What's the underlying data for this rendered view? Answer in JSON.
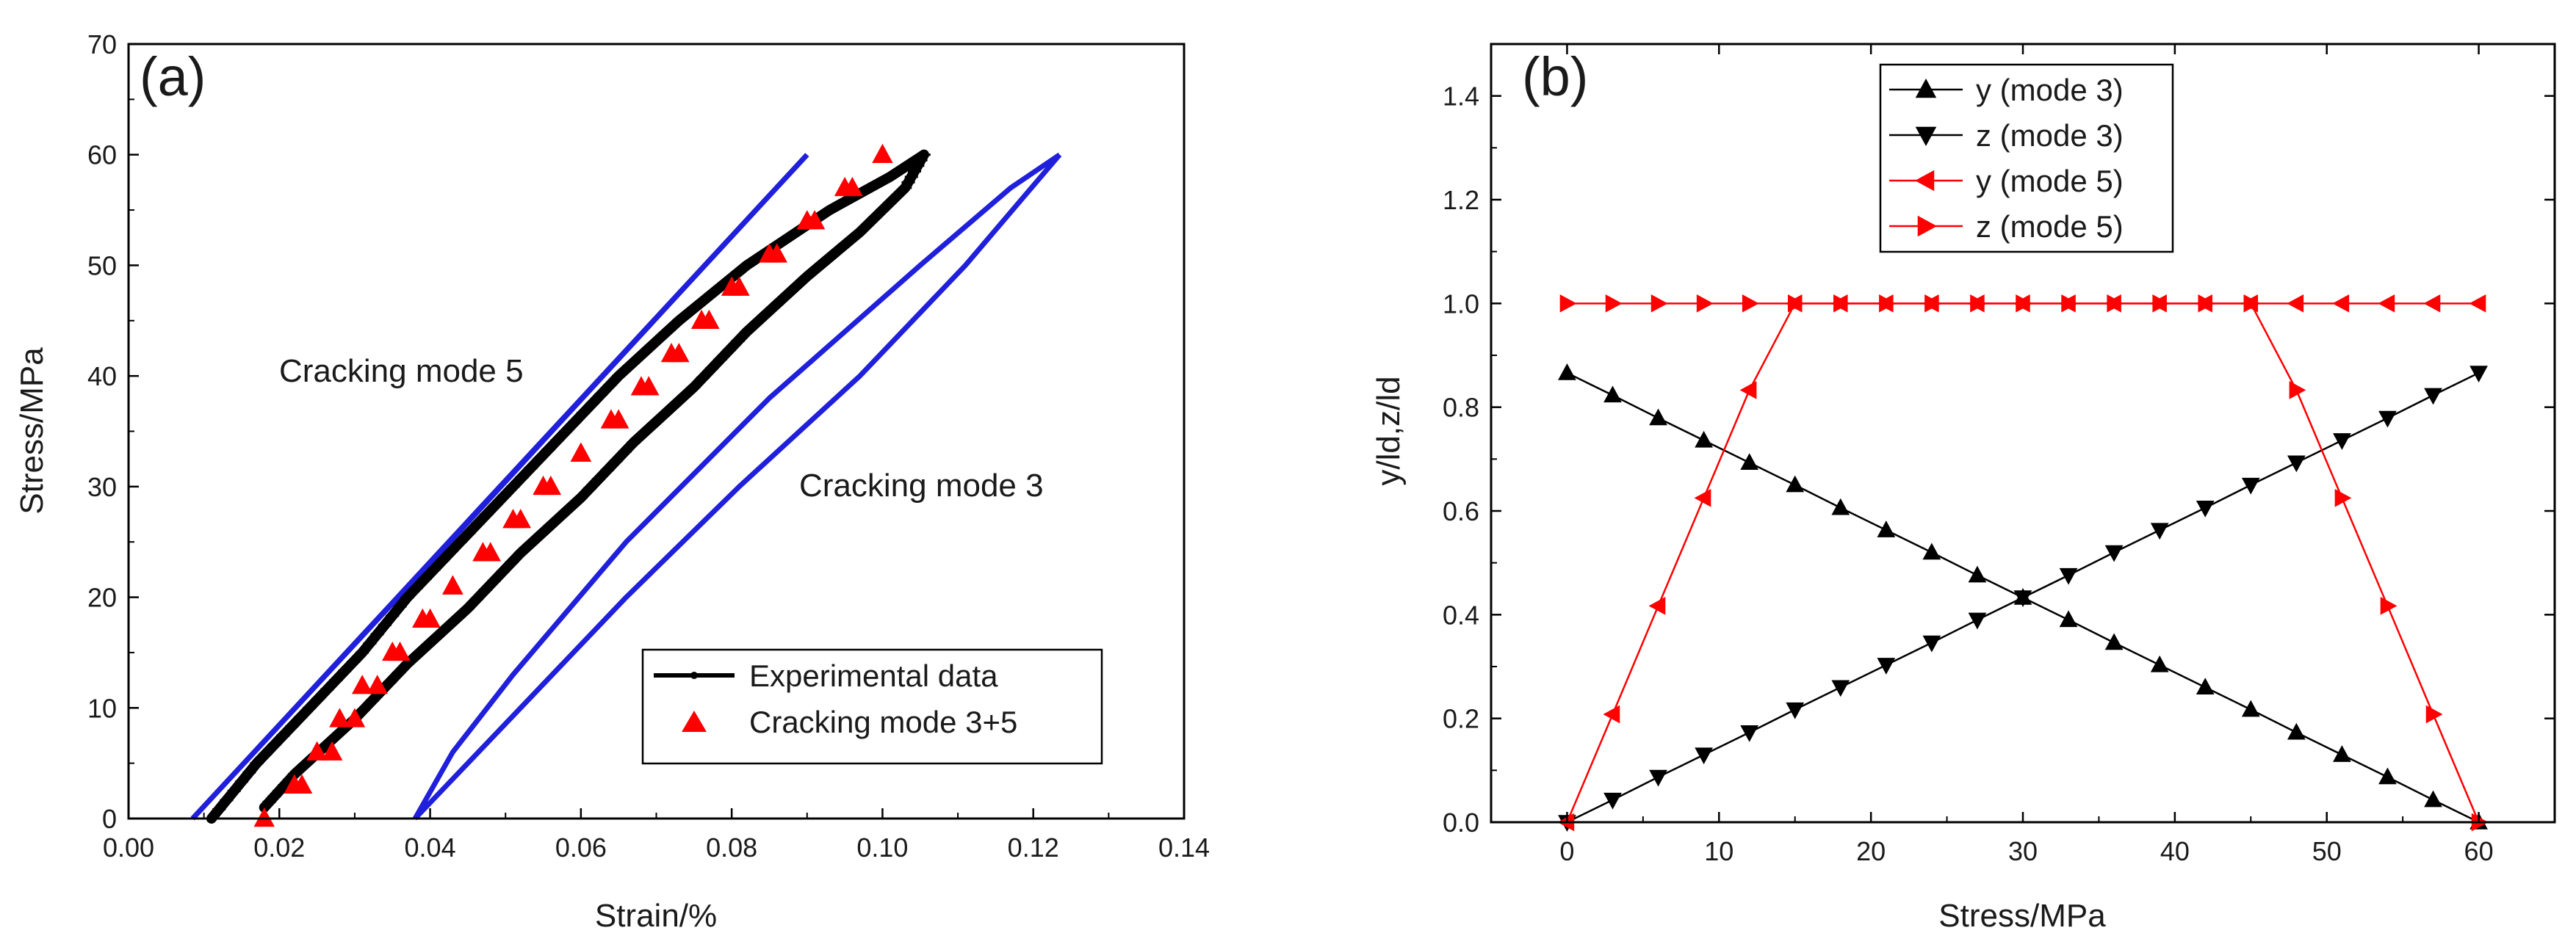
{
  "colors": {
    "black": "#000000",
    "blue": "#1f1fdc",
    "red": "#ff0000"
  },
  "chart_data": [
    {
      "type": "line",
      "panel_label": "(a)",
      "xlabel": "Strain/%",
      "ylabel": "Stress/MPa",
      "xlim": [
        0.0,
        0.14
      ],
      "ylim": [
        0,
        70
      ],
      "x_ticks": [
        "0.00",
        "0.02",
        "0.04",
        "0.06",
        "0.08",
        "0.10",
        "0.12",
        "0.14"
      ],
      "y_ticks": [
        "0",
        "10",
        "20",
        "30",
        "40",
        "50",
        "60",
        "70"
      ],
      "annotations": [
        {
          "text": "Cracking mode 5",
          "x": 0.043,
          "y": 40
        },
        {
          "text": "Cracking mode 3",
          "x": 0.091,
          "y": 29
        }
      ],
      "legend": {
        "position": "lower-right",
        "entries": [
          "Experimental data",
          "Cracking mode 3+5"
        ]
      },
      "series": [
        {
          "name": "Experimental data",
          "style": "black-thick-line-dots",
          "loading": [
            [
              0.011,
              0
            ],
            [
              0.017,
              5
            ],
            [
              0.024,
              10
            ],
            [
              0.031,
              15
            ],
            [
              0.037,
              20
            ],
            [
              0.044,
              25
            ],
            [
              0.051,
              30
            ],
            [
              0.058,
              35
            ],
            [
              0.065,
              40
            ],
            [
              0.073,
              45
            ],
            [
              0.082,
              50
            ],
            [
              0.093,
              55
            ],
            [
              0.101,
              58
            ],
            [
              0.1055,
              60
            ]
          ],
          "unloading": [
            [
              0.1055,
              60
            ],
            [
              0.103,
              57
            ],
            [
              0.097,
              53
            ],
            [
              0.09,
              49
            ],
            [
              0.082,
              44
            ],
            [
              0.075,
              39
            ],
            [
              0.067,
              34
            ],
            [
              0.06,
              29
            ],
            [
              0.052,
              24
            ],
            [
              0.045,
              19
            ],
            [
              0.037,
              14
            ],
            [
              0.03,
              9
            ],
            [
              0.022,
              4
            ],
            [
              0.018,
              1
            ]
          ]
        },
        {
          "name": "Cracking mode 5",
          "style": "blue-loop",
          "loading": [
            [
              0.0085,
              0
            ],
            [
              0.09,
              60
            ]
          ],
          "unloading": [
            [
              0.09,
              60
            ],
            [
              0.046,
              27.5
            ],
            [
              0.0085,
              0
            ]
          ]
        },
        {
          "name": "Cracking mode 3",
          "style": "blue-loop",
          "loading": [
            [
              0.038,
              0
            ],
            [
              0.052,
              10
            ],
            [
              0.066,
              20
            ],
            [
              0.081,
              30
            ],
            [
              0.097,
              40
            ],
            [
              0.111,
              50
            ],
            [
              0.1235,
              60
            ]
          ],
          "unloading": [
            [
              0.1235,
              60
            ],
            [
              0.117,
              57
            ],
            [
              0.105,
              50
            ],
            [
              0.085,
              38
            ],
            [
              0.066,
              25
            ],
            [
              0.051,
              13
            ],
            [
              0.043,
              6
            ],
            [
              0.038,
              0
            ]
          ]
        },
        {
          "name": "Cracking mode 3+5",
          "style": "red-triangles",
          "points": [
            [
              0.018,
              0
            ],
            [
              0.023,
              3
            ],
            [
              0.027,
              6
            ],
            [
              0.03,
              9
            ],
            [
              0.033,
              12
            ],
            [
              0.036,
              15
            ],
            [
              0.04,
              18
            ],
            [
              0.043,
              21
            ],
            [
              0.048,
              24
            ],
            [
              0.052,
              27
            ],
            [
              0.056,
              30
            ],
            [
              0.06,
              33
            ],
            [
              0.065,
              36
            ],
            [
              0.069,
              39
            ],
            [
              0.073,
              42
            ],
            [
              0.077,
              45
            ],
            [
              0.081,
              48
            ],
            [
              0.086,
              51
            ],
            [
              0.091,
              54
            ],
            [
              0.096,
              57
            ],
            [
              0.1,
              60
            ],
            [
              0.095,
              57
            ],
            [
              0.09,
              54
            ],
            [
              0.085,
              51
            ],
            [
              0.08,
              48
            ],
            [
              0.076,
              45
            ],
            [
              0.072,
              42
            ],
            [
              0.068,
              39
            ],
            [
              0.064,
              36
            ],
            [
              0.06,
              33
            ],
            [
              0.055,
              30
            ],
            [
              0.051,
              27
            ],
            [
              0.047,
              24
            ],
            [
              0.043,
              21
            ],
            [
              0.039,
              18
            ],
            [
              0.035,
              15
            ],
            [
              0.031,
              12
            ],
            [
              0.028,
              9
            ],
            [
              0.025,
              6
            ],
            [
              0.022,
              3
            ]
          ]
        }
      ]
    },
    {
      "type": "line",
      "panel_label": "(b)",
      "xlabel": "Stress/MPa",
      "ylabel": "y/ld,z/ld",
      "xlim": [
        -5,
        65
      ],
      "ylim": [
        0.0,
        1.5
      ],
      "x_ticks": [
        "0",
        "10",
        "20",
        "30",
        "40",
        "50",
        "60"
      ],
      "y_ticks": [
        "0.0",
        "0.2",
        "0.4",
        "0.6",
        "0.8",
        "1.0",
        "1.2",
        "1.4"
      ],
      "legend": {
        "position": "top-left",
        "entries": [
          "y (mode 3)",
          "z (mode 3)",
          "y (mode 5)",
          "z (mode 5)"
        ]
      },
      "x": [
        0,
        3,
        6,
        9,
        12,
        15,
        18,
        21,
        24,
        27,
        30,
        33,
        36,
        39,
        42,
        45,
        48,
        51,
        54,
        57,
        60
      ],
      "series": [
        {
          "name": "y (mode 3)",
          "color": "#000000",
          "marker": "triangle-up",
          "values": [
            0.866,
            0.823,
            0.779,
            0.736,
            0.693,
            0.65,
            0.606,
            0.563,
            0.52,
            0.476,
            0.433,
            0.39,
            0.346,
            0.303,
            0.26,
            0.217,
            0.173,
            0.13,
            0.087,
            0.043,
            0.0
          ]
        },
        {
          "name": "z (mode 3)",
          "color": "#000000",
          "marker": "triangle-down",
          "values": [
            0.0,
            0.043,
            0.087,
            0.13,
            0.173,
            0.217,
            0.26,
            0.303,
            0.346,
            0.39,
            0.433,
            0.476,
            0.52,
            0.563,
            0.606,
            0.65,
            0.693,
            0.736,
            0.779,
            0.823,
            0.866
          ]
        },
        {
          "name": "y (mode 5)",
          "color": "#ff0000",
          "marker": "triangle-left",
          "values": [
            0.0,
            0.208,
            0.417,
            0.625,
            0.833,
            1.0,
            1.0,
            1.0,
            1.0,
            1.0,
            1.0,
            1.0,
            1.0,
            1.0,
            1.0,
            1.0,
            1.0,
            1.0,
            1.0,
            1.0,
            1.0
          ]
        },
        {
          "name": "z (mode 5)",
          "color": "#ff0000",
          "marker": "triangle-right",
          "values": [
            1.0,
            1.0,
            1.0,
            1.0,
            1.0,
            1.0,
            1.0,
            1.0,
            1.0,
            1.0,
            1.0,
            1.0,
            1.0,
            1.0,
            1.0,
            1.0,
            0.833,
            0.625,
            0.417,
            0.208,
            0.0
          ]
        }
      ]
    }
  ]
}
